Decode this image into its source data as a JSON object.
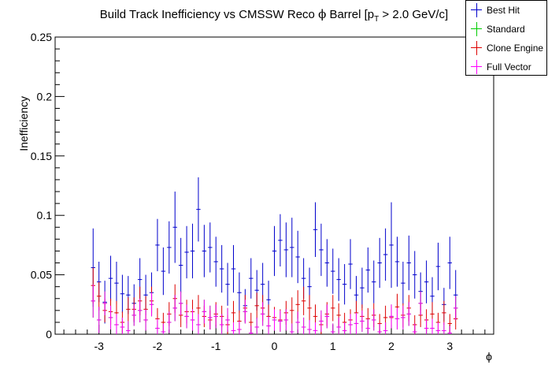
{
  "chart_data": {
    "type": "scatter",
    "title_main": "Build Track Inefficiency vs CMSSW Reco ",
    "title_phi": "ϕ",
    "title_mid": " Barrel [p",
    "title_sub": "T",
    "title_end": " > 2.0 GeV/c]",
    "xlabel": "ϕ",
    "ylabel": "Inefficiency",
    "xlim": [
      -3.75,
      3.75
    ],
    "ylim": [
      0,
      0.25
    ],
    "xticks": [
      -3,
      -2,
      -1,
      0,
      1,
      2,
      3
    ],
    "xtick_labels": [
      "-3",
      "-2",
      "-1",
      "0",
      "1",
      "2",
      "3"
    ],
    "yticks": [
      0,
      0.05,
      0.1,
      0.15,
      0.2,
      0.25
    ],
    "ytick_labels": [
      "0",
      "0.05",
      "0.1",
      "0.15",
      "0.2",
      "0.25"
    ],
    "bin_width": 0.1,
    "x": [
      -3.1,
      -3.0,
      -2.9,
      -2.8,
      -2.7,
      -2.6,
      -2.5,
      -2.4,
      -2.3,
      -2.2,
      -2.1,
      -2.0,
      -1.9,
      -1.8,
      -1.7,
      -1.6,
      -1.5,
      -1.4,
      -1.3,
      -1.2,
      -1.1,
      -1.0,
      -0.9,
      -0.8,
      -0.7,
      -0.6,
      -0.5,
      -0.4,
      -0.3,
      -0.2,
      -0.1,
      0.0,
      0.1,
      0.2,
      0.3,
      0.4,
      0.5,
      0.6,
      0.7,
      0.8,
      0.9,
      1.0,
      1.1,
      1.2,
      1.3,
      1.4,
      1.5,
      1.6,
      1.7,
      1.8,
      1.9,
      2.0,
      2.1,
      2.2,
      2.3,
      2.4,
      2.5,
      2.6,
      2.7,
      2.8,
      2.9,
      3.0,
      3.1
    ],
    "series": [
      {
        "name": "Best Hit",
        "color": "#0000cc",
        "values": [
          0.056,
          0.044,
          0.027,
          0.047,
          0.043,
          0.034,
          0.033,
          0.026,
          0.046,
          0.033,
          0.035,
          0.075,
          0.053,
          0.073,
          0.09,
          0.058,
          0.069,
          0.07,
          0.105,
          0.07,
          0.073,
          0.061,
          0.055,
          0.042,
          0.055,
          0.035,
          0.024,
          0.047,
          0.037,
          0.042,
          0.029,
          0.07,
          0.079,
          0.071,
          0.073,
          0.065,
          0.047,
          0.04,
          0.088,
          0.071,
          0.06,
          0.053,
          0.046,
          0.042,
          0.059,
          0.033,
          0.039,
          0.054,
          0.044,
          0.06,
          0.067,
          0.075,
          0.061,
          0.043,
          0.06,
          0.05,
          0.036,
          0.044,
          0.032,
          0.057,
          0.025,
          0.06,
          0.033
        ],
        "errors": [
          0.033,
          0.017,
          0.018,
          0.019,
          0.018,
          0.016,
          0.016,
          0.016,
          0.018,
          0.017,
          0.017,
          0.022,
          0.02,
          0.022,
          0.03,
          0.023,
          0.022,
          0.023,
          0.027,
          0.022,
          0.021,
          0.021,
          0.02,
          0.018,
          0.02,
          0.017,
          0.014,
          0.017,
          0.017,
          0.018,
          0.016,
          0.021,
          0.022,
          0.023,
          0.025,
          0.022,
          0.017,
          0.016,
          0.023,
          0.022,
          0.02,
          0.019,
          0.018,
          0.017,
          0.021,
          0.016,
          0.017,
          0.019,
          0.018,
          0.021,
          0.022,
          0.036,
          0.021,
          0.018,
          0.023,
          0.02,
          0.016,
          0.018,
          0.016,
          0.02,
          0.014,
          0.022,
          0.021
        ]
      },
      {
        "name": "Standard",
        "color": "#00cc00",
        "values": [
          0.028,
          0.012,
          0.026,
          0.014,
          0.008,
          0.006,
          0.003,
          0.016,
          0.02,
          0.012,
          0.025,
          0.005,
          0.002,
          0.01,
          0.022,
          0.026,
          0.015,
          0.012,
          0.008,
          0.019,
          0.014,
          0.015,
          0.008,
          0.012,
          0.003,
          0.004,
          0.019,
          0.001,
          0.006,
          0.017,
          0.007,
          0.012,
          0.011,
          0.012,
          0.002,
          0.01,
          0.006,
          0.004,
          0.003,
          0.011,
          0.015,
          0.002,
          0.006,
          0.003,
          0.008,
          0.009,
          0.011,
          0.005,
          0.012,
          0.002,
          0.003,
          0.015,
          0.013,
          0.014,
          0.017,
          0.002,
          0.026,
          0.005,
          0.005,
          0.003,
          0.003,
          0.001,
          0.022
        ],
        "errors": [
          0.014,
          0.011,
          0.01,
          0.01,
          0.009,
          0.008,
          0.008,
          0.009,
          0.01,
          0.009,
          0.01,
          0.008,
          0.007,
          0.009,
          0.011,
          0.01,
          0.01,
          0.009,
          0.009,
          0.01,
          0.01,
          0.01,
          0.009,
          0.01,
          0.007,
          0.007,
          0.01,
          0.006,
          0.008,
          0.01,
          0.008,
          0.009,
          0.009,
          0.009,
          0.007,
          0.009,
          0.008,
          0.008,
          0.007,
          0.009,
          0.01,
          0.007,
          0.008,
          0.007,
          0.009,
          0.009,
          0.009,
          0.008,
          0.009,
          0.007,
          0.007,
          0.01,
          0.009,
          0.01,
          0.01,
          0.007,
          0.01,
          0.008,
          0.008,
          0.007,
          0.007,
          0.006,
          0.01
        ]
      },
      {
        "name": "Clone Engine",
        "color": "#dd0000",
        "values": [
          0.041,
          0.032,
          0.02,
          0.019,
          0.018,
          0.01,
          0.021,
          0.021,
          0.028,
          0.021,
          0.028,
          0.013,
          0.01,
          0.017,
          0.03,
          0.016,
          0.019,
          0.019,
          0.022,
          0.015,
          0.012,
          0.017,
          0.015,
          0.008,
          0.018,
          0.011,
          0.022,
          0.01,
          0.024,
          0.022,
          0.015,
          0.014,
          0.012,
          0.018,
          0.02,
          0.025,
          0.028,
          0.022,
          0.015,
          0.008,
          0.017,
          0.022,
          0.016,
          0.01,
          0.012,
          0.018,
          0.015,
          0.013,
          0.016,
          0.009,
          0.014,
          0.014,
          0.023,
          0.016,
          0.022,
          0.008,
          0.016,
          0.012,
          0.017,
          0.01,
          0.018,
          0.009,
          0.013
        ],
        "errors": [
          0.015,
          0.012,
          0.01,
          0.011,
          0.01,
          0.009,
          0.01,
          0.01,
          0.012,
          0.011,
          0.012,
          0.009,
          0.008,
          0.01,
          0.012,
          0.01,
          0.01,
          0.01,
          0.011,
          0.009,
          0.008,
          0.01,
          0.009,
          0.008,
          0.01,
          0.009,
          0.011,
          0.008,
          0.011,
          0.011,
          0.01,
          0.009,
          0.009,
          0.01,
          0.011,
          0.012,
          0.012,
          0.011,
          0.01,
          0.008,
          0.01,
          0.011,
          0.01,
          0.008,
          0.009,
          0.01,
          0.01,
          0.009,
          0.01,
          0.008,
          0.01,
          0.009,
          0.011,
          0.01,
          0.011,
          0.008,
          0.01,
          0.009,
          0.01,
          0.008,
          0.01,
          0.008,
          0.009
        ]
      },
      {
        "name": "Full Vector",
        "color": "#ff00ff",
        "values": [
          0.028,
          0.012,
          0.026,
          0.014,
          0.008,
          0.006,
          0.003,
          0.016,
          0.02,
          0.012,
          0.025,
          0.005,
          0.002,
          0.01,
          0.022,
          0.026,
          0.015,
          0.012,
          0.008,
          0.019,
          0.014,
          0.015,
          0.008,
          0.012,
          0.003,
          0.004,
          0.019,
          0.001,
          0.006,
          0.017,
          0.007,
          0.012,
          0.011,
          0.012,
          0.002,
          0.01,
          0.006,
          0.004,
          0.003,
          0.011,
          0.015,
          0.002,
          0.006,
          0.003,
          0.008,
          0.009,
          0.011,
          0.005,
          0.012,
          0.002,
          0.003,
          0.015,
          0.013,
          0.014,
          0.017,
          0.002,
          0.026,
          0.005,
          0.005,
          0.003,
          0.003,
          0.001,
          0.022
        ],
        "errors": [
          0.014,
          0.011,
          0.01,
          0.01,
          0.009,
          0.008,
          0.008,
          0.009,
          0.01,
          0.009,
          0.01,
          0.008,
          0.007,
          0.009,
          0.011,
          0.01,
          0.01,
          0.009,
          0.009,
          0.01,
          0.01,
          0.01,
          0.009,
          0.01,
          0.007,
          0.007,
          0.01,
          0.006,
          0.008,
          0.01,
          0.008,
          0.009,
          0.009,
          0.009,
          0.007,
          0.009,
          0.008,
          0.008,
          0.007,
          0.009,
          0.01,
          0.007,
          0.008,
          0.007,
          0.009,
          0.009,
          0.009,
          0.008,
          0.009,
          0.007,
          0.007,
          0.01,
          0.009,
          0.01,
          0.01,
          0.007,
          0.01,
          0.008,
          0.008,
          0.007,
          0.007,
          0.006,
          0.01
        ]
      }
    ],
    "legend_position": "top-right",
    "grid": false
  }
}
